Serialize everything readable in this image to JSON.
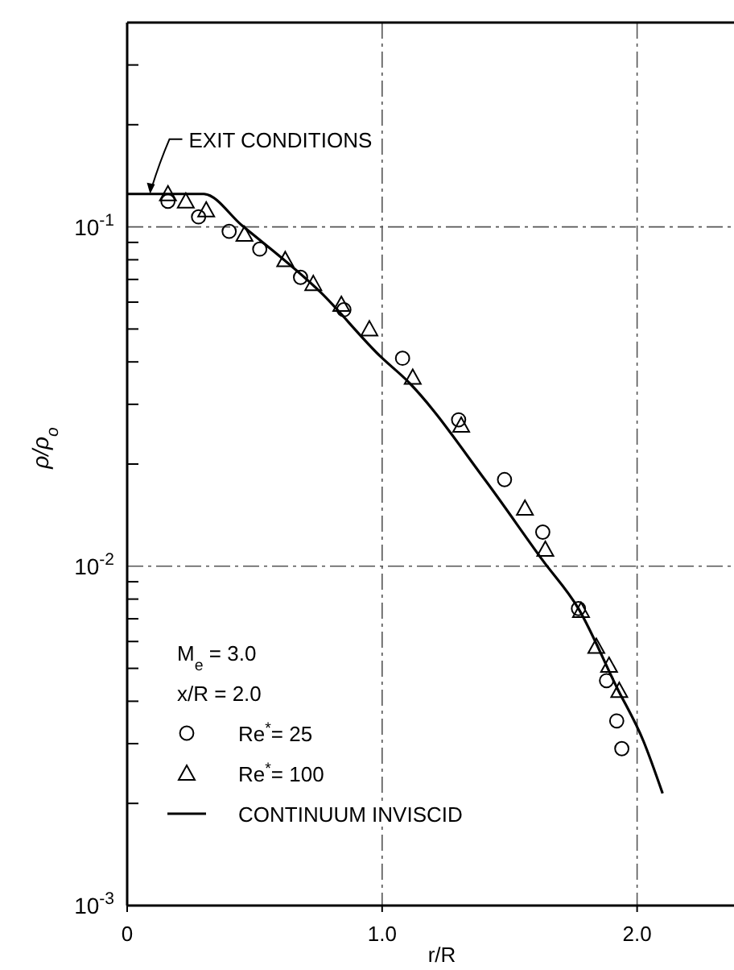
{
  "chart_data": {
    "type": "scatter",
    "xlabel": "r/R",
    "ylabel": "ρ/ρ$_{o}$",
    "log": "y",
    "grid": true,
    "legend": "bottom left",
    "xlim": [
      0,
      2.38
    ],
    "xticks": [
      0,
      {
        "value": 1,
        "label": "1.0"
      },
      {
        "value": 2,
        "label": "2.0"
      }
    ],
    "ylim": [
      0.001,
      0.4
    ],
    "yticks": [
      {
        "value": 0.001,
        "label": "10$^{-3}$"
      },
      {
        "value": 0.002,
        "label": null
      },
      {
        "value": 0.003,
        "label": null
      },
      {
        "value": 0.004,
        "label": null
      },
      {
        "value": 0.005,
        "label": null
      },
      {
        "value": 0.006,
        "label": null
      },
      {
        "value": 0.007,
        "label": null
      },
      {
        "value": 0.008,
        "label": null
      },
      {
        "value": 0.009,
        "label": null
      },
      {
        "value": 0.01,
        "label": "10$^{-2}$"
      },
      {
        "value": 0.02,
        "label": null
      },
      {
        "value": 0.03,
        "label": null
      },
      {
        "value": 0.04,
        "label": null
      },
      {
        "value": 0.05,
        "label": null
      },
      {
        "value": 0.06,
        "label": null
      },
      {
        "value": 0.07,
        "label": null
      },
      {
        "value": 0.08,
        "label": null
      },
      {
        "value": 0.09,
        "label": null
      },
      {
        "value": 0.1,
        "label": "10$^{-1}$"
      },
      {
        "value": 0.2,
        "label": null
      },
      {
        "value": 0.3,
        "label": null
      }
    ],
    "annotations": [
      {
        "text": "EXIT CONDITIONS",
        "x": 0.09,
        "y": 0.125
      },
      "M$_{e}$ = 3.0",
      "x/R = 2.0"
    ],
    "series": [
      {
        "name": "Re$^{*}$= 25",
        "marker": "circle",
        "color": "#000000",
        "x": [
          0.16,
          0.28,
          0.4,
          0.52,
          0.68,
          0.85,
          1.08,
          1.3,
          1.48,
          1.63,
          1.77,
          1.88,
          1.92,
          1.94
        ],
        "values": [
          0.119,
          0.107,
          0.097,
          0.086,
          0.071,
          0.057,
          0.041,
          0.027,
          0.018,
          0.0126,
          0.0075,
          0.0046,
          0.0035,
          0.0029
        ]
      },
      {
        "name": "Re$^{*}$= 100",
        "marker": "triangle",
        "color": "#000000",
        "x": [
          0.16,
          0.23,
          0.31,
          0.46,
          0.62,
          0.73,
          0.84,
          0.95,
          1.12,
          1.31,
          1.56,
          1.64,
          1.78,
          1.84,
          1.89,
          1.93
        ],
        "values": [
          0.125,
          0.119,
          0.112,
          0.095,
          0.08,
          0.068,
          0.059,
          0.05,
          0.036,
          0.026,
          0.0148,
          0.0112,
          0.0074,
          0.0058,
          0.0051,
          0.0043
        ]
      },
      {
        "name": "CONTINUUM INVISCID",
        "type": "line",
        "marker": "none",
        "line_style": "solid",
        "color": "#000000",
        "x": [
          0,
          0.3,
          0.45,
          0.76,
          0.995,
          1.1,
          1.405,
          1.63,
          1.77,
          1.92,
          2.025,
          2.1
        ],
        "values": [
          0.125,
          0.125,
          0.101,
          0.064,
          0.0414,
          0.0351,
          0.0179,
          0.0104,
          0.0075,
          0.0044,
          0.00305,
          0.00214
        ]
      }
    ]
  }
}
